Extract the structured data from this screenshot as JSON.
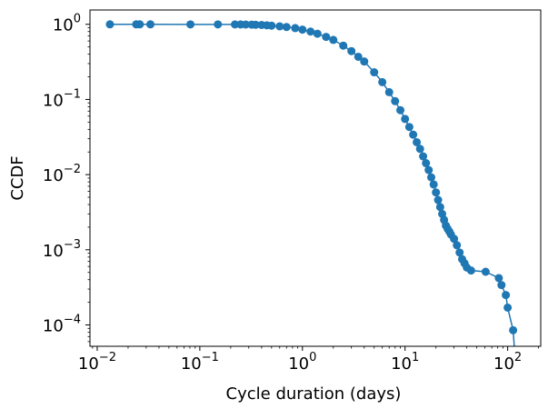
{
  "chart_data": {
    "type": "scatter",
    "title": "",
    "xlabel": "Cycle duration (days)",
    "ylabel": "CCDF",
    "xscale": "log",
    "yscale": "log",
    "xlim": [
      0.0085,
      210
    ],
    "ylim": [
      5.2e-05,
      1.55
    ],
    "grid": false,
    "legend": "none",
    "marker": "circle",
    "connect_points": true,
    "color": "#1f77b4",
    "x_ticks": [
      {
        "base": "10",
        "exp": "−2"
      },
      {
        "base": "10",
        "exp": "−1"
      },
      {
        "base": "10",
        "exp": "0"
      },
      {
        "base": "10",
        "exp": "1"
      },
      {
        "base": "10",
        "exp": "2"
      }
    ],
    "y_ticks": [
      {
        "base": "10",
        "exp": "−4"
      },
      {
        "base": "10",
        "exp": "−3"
      },
      {
        "base": "10",
        "exp": "−2"
      },
      {
        "base": "10",
        "exp": "−1"
      },
      {
        "base": "10",
        "exp": "0"
      }
    ],
    "series": [
      {
        "x": [
          0.0133,
          0.024,
          0.026,
          0.033,
          0.081,
          0.15,
          0.22,
          0.25,
          0.28,
          0.32,
          0.35,
          0.4,
          0.45,
          0.5,
          0.6,
          0.7,
          0.85,
          1.0,
          1.2,
          1.4,
          1.7,
          2.0,
          2.5,
          3.0,
          3.5,
          4.0,
          5.0,
          6.0,
          7.0,
          8.0,
          9.0,
          10.0,
          11.0,
          12.0,
          13.0,
          14.0,
          15.0,
          16.0,
          17.0,
          18.0,
          19.0,
          20.0,
          21.0,
          22.0,
          23.0,
          24.0,
          25.0,
          26.0,
          27.0,
          28.0,
          30.0,
          32.0,
          34.0,
          36.0,
          38.0,
          40.0,
          44.0,
          61.0,
          82.0,
          87.0,
          96.0,
          100.0,
          113.0,
          116.0
        ],
        "y": [
          0.999,
          0.999,
          0.998,
          0.998,
          0.997,
          0.997,
          0.996,
          0.995,
          0.993,
          0.99,
          0.985,
          0.98,
          0.97,
          0.96,
          0.94,
          0.92,
          0.89,
          0.85,
          0.8,
          0.75,
          0.68,
          0.62,
          0.52,
          0.44,
          0.37,
          0.32,
          0.23,
          0.17,
          0.125,
          0.095,
          0.072,
          0.055,
          0.043,
          0.034,
          0.027,
          0.022,
          0.0175,
          0.0142,
          0.0115,
          0.0092,
          0.0074,
          0.0058,
          0.0046,
          0.0037,
          0.003,
          0.0025,
          0.0021,
          0.0019,
          0.00175,
          0.0016,
          0.0014,
          0.00115,
          0.00092,
          0.00075,
          0.00066,
          0.00058,
          0.00053,
          0.00051,
          0.00042,
          0.00034,
          0.00025,
          0.00017,
          8.5e-05,
          4e-05
        ]
      }
    ]
  }
}
